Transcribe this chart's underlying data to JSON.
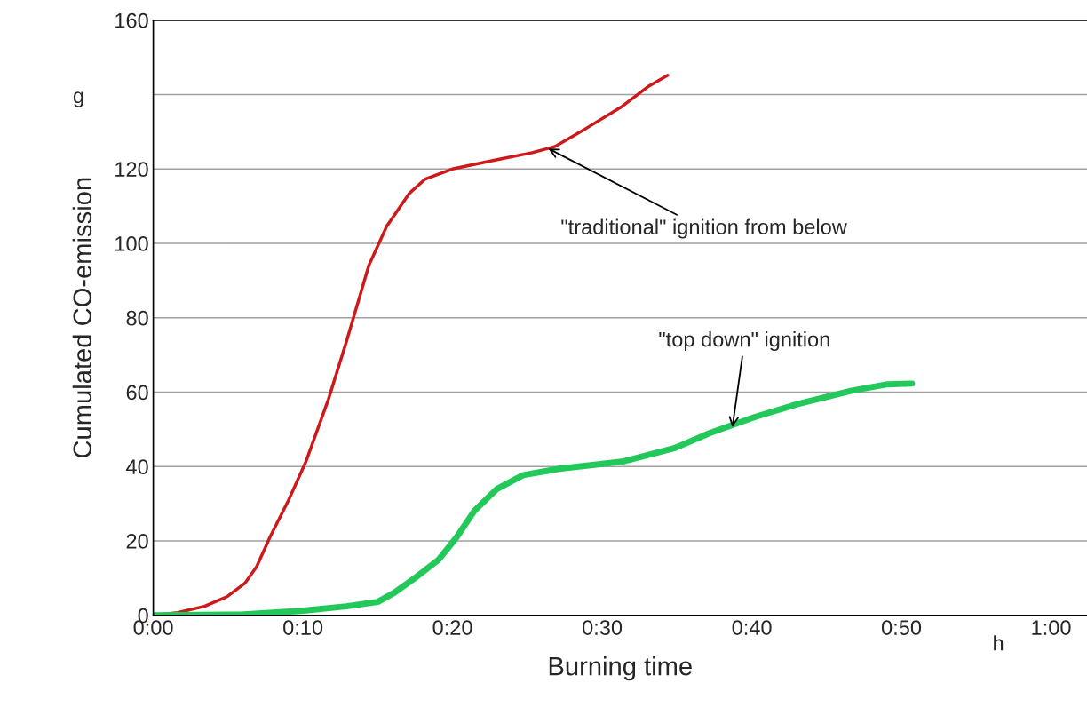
{
  "chart_data": {
    "type": "line",
    "xlabel": "Burning time",
    "ylabel": "Cumulated CO-emission",
    "xlim": [
      0,
      1.04
    ],
    "ylim": [
      0,
      160
    ],
    "xticks": [
      {
        "value": 0,
        "label": "0:00"
      },
      {
        "value": 0.1667,
        "label": "0:10"
      },
      {
        "value": 0.3333,
        "label": "0:20"
      },
      {
        "value": 0.5,
        "label": "0:30"
      },
      {
        "value": 0.6667,
        "label": "0:40"
      },
      {
        "value": 0.8333,
        "label": "0:50"
      },
      {
        "value": 1,
        "label": "1:00"
      }
    ],
    "yticks": [
      0,
      20,
      40,
      60,
      80,
      100,
      120,
      {
        "value": 140,
        "label": null
      },
      160
    ],
    "grid": "y",
    "legend": false,
    "marker": "none",
    "line_style": "solid",
    "series": [
      {
        "color": "#cc1a1a",
        "x": [
          0,
          0.027,
          0.057,
          0.082,
          0.102,
          0.115,
          0.13,
          0.15,
          0.17,
          0.195,
          0.215,
          0.24,
          0.26,
          0.285,
          0.303,
          0.333,
          0.383,
          0.422,
          0.447,
          0.482,
          0.522,
          0.552,
          0.573
        ],
        "values": [
          0,
          0.7,
          2.4,
          5,
          8.6,
          13,
          21,
          30.6,
          41.3,
          58,
          73.5,
          94,
          104.6,
          113.4,
          117.3,
          120,
          122.5,
          124.4,
          126,
          130.9,
          136.8,
          142.3,
          145.2
        ]
      },
      {
        "color": "#22c95a",
        "x": [
          0,
          0.097,
          0.165,
          0.215,
          0.25,
          0.268,
          0.293,
          0.318,
          0.338,
          0.358,
          0.383,
          0.412,
          0.452,
          0.522,
          0.58,
          0.62,
          0.67,
          0.718,
          0.778,
          0.818,
          0.845
        ],
        "values": [
          0,
          0.2,
          1.2,
          2.4,
          3.6,
          6,
          10.3,
          15,
          21,
          28.2,
          34,
          37.7,
          39.4,
          41.3,
          44.9,
          49,
          53.3,
          56.8,
          60.4,
          62.1,
          62.3
        ]
      }
    ],
    "annotations": [
      {
        "text": "\"traditional\" ignition from below",
        "x": 0.44,
        "y": 125.5
      },
      {
        "text": "\"top down\" ignition",
        "x": 0.645,
        "y": 50.5
      },
      "g",
      "h"
    ]
  }
}
